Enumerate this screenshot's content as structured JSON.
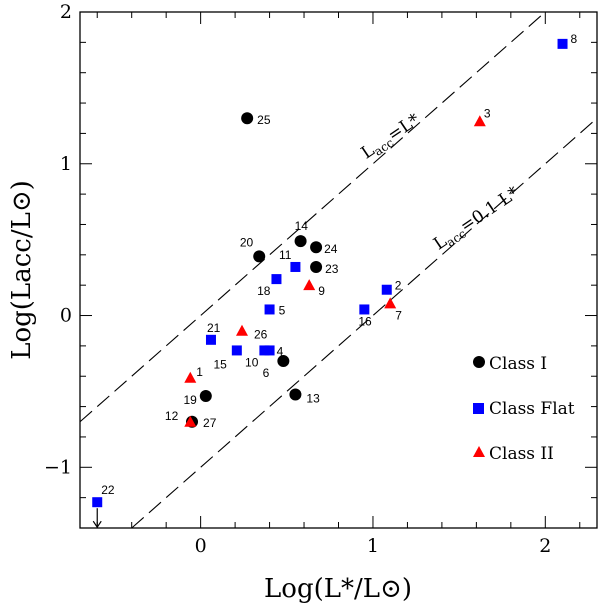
{
  "chart_data": {
    "type": "scatter",
    "xlabel": "Log(L*/L⊙)",
    "ylabel": "Log(Lacc/L⊙)",
    "xlim": [
      -0.7,
      2.3
    ],
    "ylim": [
      -1.4,
      2.0
    ],
    "x_ticks": [
      0,
      1,
      2
    ],
    "y_ticks": [
      -1,
      0,
      1,
      2
    ],
    "x_tick_labels": [
      "0",
      "1",
      "2"
    ],
    "y_tick_labels": [
      "−1",
      "0",
      "1",
      "2"
    ],
    "legend_position": "bottom-right",
    "colors": {
      "Class I": "#000000",
      "Class Flat": "#0000ff",
      "Class II": "#ff0000"
    },
    "reference_lines": [
      {
        "name": "equal",
        "label_main": "L",
        "label_sub": "acc",
        "label_rest": "=L*",
        "offset": 0.0
      },
      {
        "name": "tenth",
        "label_main": "L",
        "label_sub": "acc",
        "label_rest": "=0.1 L*",
        "offset": -1.0
      }
    ],
    "series": [
      {
        "name": "Class I",
        "marker": "circle",
        "points": [
          {
            "id": "25",
            "x": 0.27,
            "y": 1.3
          },
          {
            "id": "20",
            "x": 0.34,
            "y": 0.39
          },
          {
            "id": "14",
            "x": 0.58,
            "y": 0.49
          },
          {
            "id": "24",
            "x": 0.67,
            "y": 0.45
          },
          {
            "id": "23",
            "x": 0.67,
            "y": 0.32
          },
          {
            "id": "6",
            "x": 0.48,
            "y": -0.3
          },
          {
            "id": "13",
            "x": 0.55,
            "y": -0.52
          },
          {
            "id": "19",
            "x": 0.03,
            "y": -0.53
          },
          {
            "id": "27",
            "x": -0.05,
            "y": -0.7
          }
        ]
      },
      {
        "name": "Class Flat",
        "marker": "square",
        "points": [
          {
            "id": "8",
            "x": 2.1,
            "y": 1.79
          },
          {
            "id": "11",
            "x": 0.55,
            "y": 0.32
          },
          {
            "id": "18",
            "x": 0.44,
            "y": 0.24
          },
          {
            "id": "2",
            "x": 1.08,
            "y": 0.17
          },
          {
            "id": "5",
            "x": 0.4,
            "y": 0.04
          },
          {
            "id": "16",
            "x": 0.95,
            "y": 0.04
          },
          {
            "id": "21",
            "x": 0.06,
            "y": -0.16
          },
          {
            "id": "15",
            "x": 0.21,
            "y": -0.23
          },
          {
            "id": "10",
            "x": 0.37,
            "y": -0.23
          },
          {
            "id": "4",
            "x": 0.4,
            "y": -0.23
          },
          {
            "id": "22",
            "x": -0.6,
            "y": -1.23,
            "upper_limit": true
          }
        ]
      },
      {
        "name": "Class II",
        "marker": "triangle",
        "points": [
          {
            "id": "3",
            "x": 1.62,
            "y": 1.28
          },
          {
            "id": "9",
            "x": 0.63,
            "y": 0.2
          },
          {
            "id": "7",
            "x": 1.1,
            "y": 0.08
          },
          {
            "id": "26",
            "x": 0.24,
            "y": -0.1
          },
          {
            "id": "1",
            "x": -0.06,
            "y": -0.41
          },
          {
            "id": "12",
            "x": -0.06,
            "y": -0.7
          }
        ]
      }
    ]
  }
}
